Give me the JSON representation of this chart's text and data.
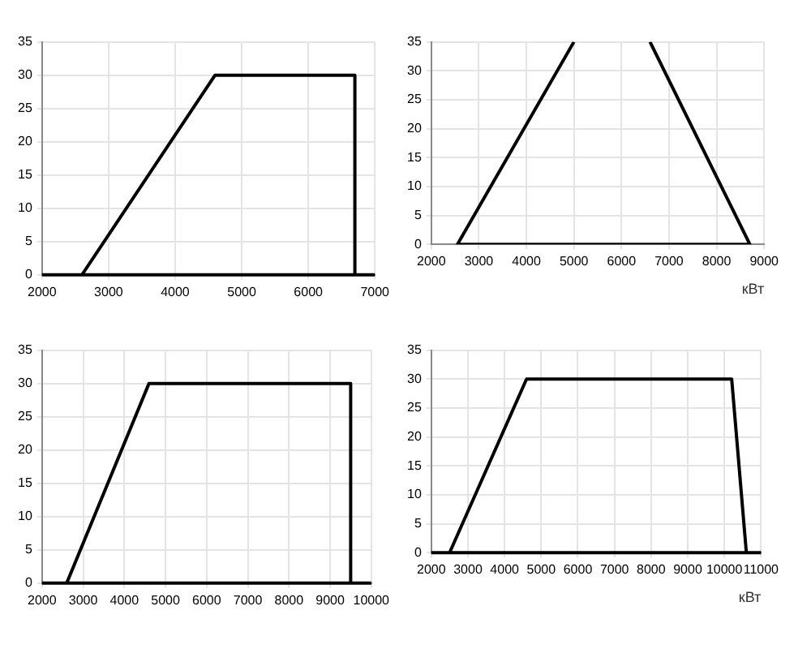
{
  "chart_data": [
    {
      "type": "line",
      "x": [
        2600,
        4600,
        6700,
        6700
      ],
      "series": [
        {
          "color": "#000000",
          "values": [
            0,
            30,
            30,
            0
          ]
        }
      ],
      "ref_lines": [
        {
          "axis": "y",
          "value": 0,
          "color": "#000000"
        }
      ],
      "xlim": [
        2000,
        7000
      ],
      "xticks": [
        2000,
        3000,
        4000,
        5000,
        6000,
        7000
      ],
      "ylim": [
        0,
        35
      ],
      "yticks": [
        0,
        5,
        10,
        15,
        20,
        25,
        30,
        35
      ],
      "grid": true,
      "legend": false,
      "marker": "none",
      "line_style": "solid"
    },
    {
      "type": "line",
      "x": [
        5000,
        2550,
        8700,
        6600
      ],
      "series": [
        {
          "color": "#000000",
          "values": [
            35,
            0,
            0,
            35
          ]
        }
      ],
      "xlabel": "кВт",
      "xlim": [
        2000,
        9000
      ],
      "xticks": [
        2000,
        3000,
        4000,
        5000,
        6000,
        7000,
        8000,
        9000
      ],
      "ylim": [
        0,
        35
      ],
      "yticks": [
        0,
        5,
        10,
        15,
        20,
        25,
        30,
        35
      ],
      "grid": true,
      "legend": false,
      "marker": "none",
      "line_style": "solid"
    },
    {
      "type": "line",
      "x": [
        2600,
        4600,
        9500,
        9500
      ],
      "series": [
        {
          "color": "#000000",
          "values": [
            0,
            30,
            30,
            0
          ]
        }
      ],
      "ref_lines": [
        {
          "axis": "y",
          "value": 0,
          "color": "#000000"
        }
      ],
      "xlim": [
        2000,
        10000
      ],
      "xticks": [
        2000,
        3000,
        4000,
        5000,
        6000,
        7000,
        8000,
        9000,
        10000
      ],
      "ylim": [
        0,
        35
      ],
      "yticks": [
        0,
        5,
        10,
        15,
        20,
        25,
        30,
        35
      ],
      "grid": true,
      "legend": false,
      "marker": "none",
      "line_style": "solid"
    },
    {
      "type": "line",
      "x": [
        2500,
        4600,
        10200,
        10600
      ],
      "series": [
        {
          "color": "#000000",
          "values": [
            0,
            30,
            30,
            0
          ]
        }
      ],
      "ref_lines": [
        {
          "axis": "y",
          "value": 0,
          "color": "#000000"
        }
      ],
      "xlabel": "кВт",
      "xlim": [
        2000,
        11000
      ],
      "xticks": [
        2000,
        3000,
        4000,
        5000,
        6000,
        7000,
        8000,
        9000,
        10000,
        11000
      ],
      "ylim": [
        0,
        35
      ],
      "yticks": [
        0,
        5,
        10,
        15,
        20,
        25,
        30,
        35
      ],
      "grid": true,
      "legend": false,
      "marker": "none",
      "line_style": "solid"
    }
  ]
}
